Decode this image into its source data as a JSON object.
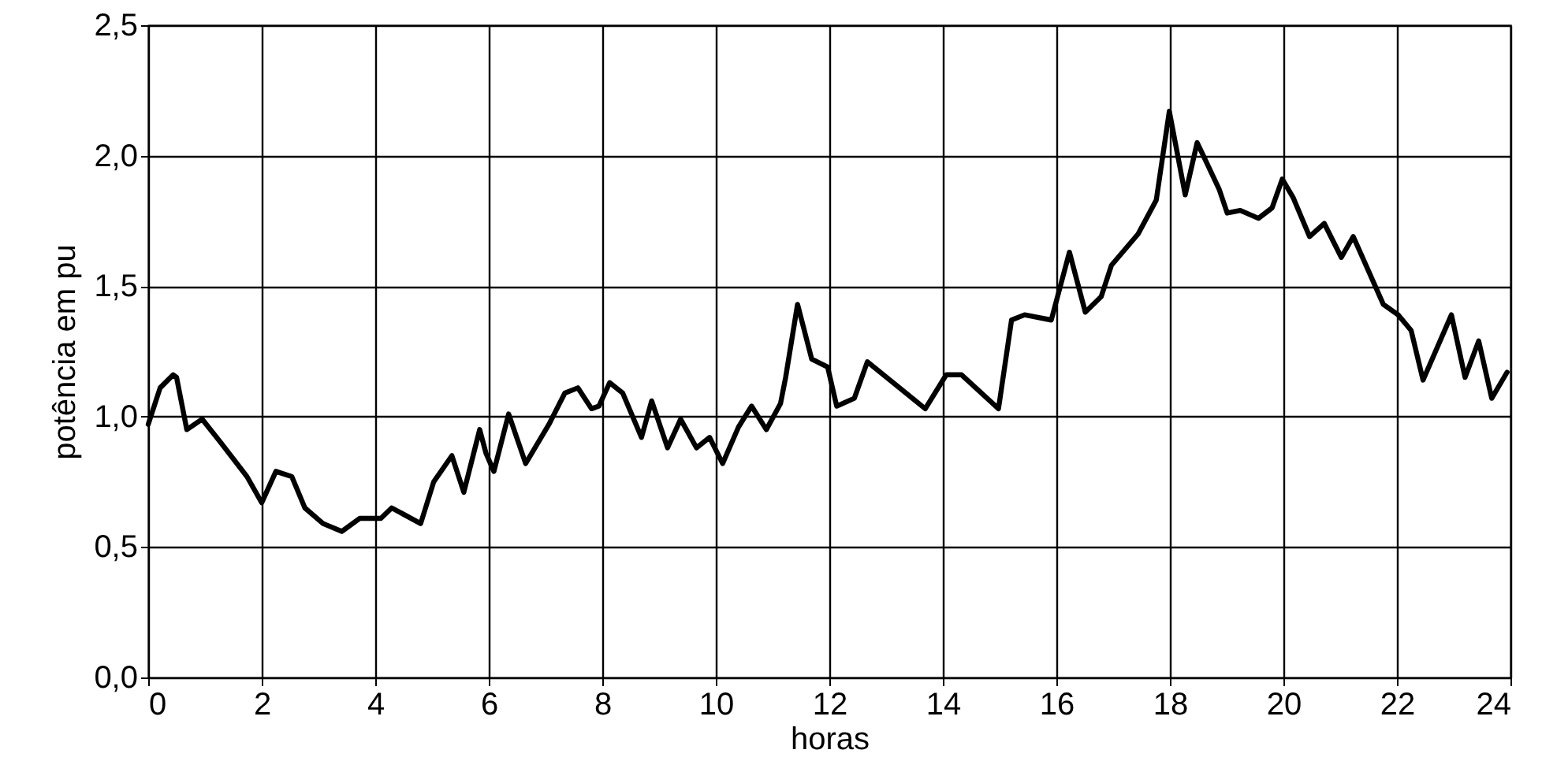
{
  "chart_data": {
    "type": "line",
    "xlabel": "horas",
    "ylabel": "potência em pu",
    "x": [
      0,
      0.21,
      0.44,
      0.5,
      0.68,
      0.95,
      1.28,
      1.74,
      2.0,
      2.25,
      2.53,
      2.76,
      3.08,
      3.41,
      3.73,
      4.1,
      4.29,
      4.8,
      5.03,
      5.35,
      5.56,
      5.84,
      5.95,
      6.09,
      6.35,
      6.65,
      7.06,
      7.34,
      7.57,
      7.81,
      7.94,
      8.13,
      8.36,
      8.69,
      8.87,
      9.15,
      9.38,
      9.66,
      9.89,
      10.12,
      10.4,
      10.63,
      10.89,
      11.14,
      11.23,
      11.44,
      11.69,
      11.97,
      12.13,
      12.44,
      12.67,
      13.69,
      14.06,
      14.33,
      14.98,
      15.21,
      15.44,
      15.91,
      16.23,
      16.51,
      16.79,
      16.97,
      17.44,
      17.76,
      17.99,
      18.27,
      18.48,
      18.87,
      19.01,
      19.24,
      19.56,
      19.8,
      19.98,
      20.17,
      20.46,
      20.72,
      21.02,
      21.23,
      21.76,
      22.02,
      22.25,
      22.46,
      22.96,
      23.2,
      23.44,
      23.67,
      23.94
    ],
    "series": [
      {
        "color": "#000000",
        "values": [
          0.97,
          1.11,
          1.16,
          1.15,
          0.95,
          0.99,
          0.9,
          0.77,
          0.67,
          0.79,
          0.77,
          0.65,
          0.59,
          0.56,
          0.61,
          0.61,
          0.65,
          0.59,
          0.75,
          0.85,
          0.71,
          0.95,
          0.86,
          0.79,
          1.01,
          0.82,
          0.97,
          1.09,
          1.11,
          1.03,
          1.04,
          1.13,
          1.09,
          0.92,
          1.06,
          0.88,
          0.99,
          0.88,
          0.92,
          0.82,
          0.96,
          1.04,
          0.95,
          1.05,
          1.15,
          1.43,
          1.22,
          1.19,
          1.04,
          1.07,
          1.21,
          1.03,
          1.16,
          1.16,
          1.03,
          1.37,
          1.39,
          1.37,
          1.63,
          1.4,
          1.46,
          1.58,
          1.7,
          1.83,
          2.17,
          1.85,
          2.05,
          1.87,
          1.78,
          1.79,
          1.76,
          1.8,
          1.91,
          1.84,
          1.69,
          1.74,
          1.61,
          1.69,
          1.43,
          1.39,
          1.33,
          1.14,
          1.39,
          1.15,
          1.29,
          1.07,
          1.17
        ]
      }
    ],
    "xlim": [
      0,
      24
    ],
    "xticks": [
      0,
      2,
      4,
      6,
      8,
      10,
      12,
      14,
      16,
      18,
      20,
      22,
      24
    ],
    "ylim": [
      0,
      2.5
    ],
    "yticks": [
      {
        "value": 0,
        "label": "0,0"
      },
      {
        "value": 0.5,
        "label": "0,5"
      },
      {
        "value": 1,
        "label": "1,0"
      },
      {
        "value": 1.5,
        "label": "1,5"
      },
      {
        "value": 2,
        "label": "2,0"
      },
      {
        "value": 2.5,
        "label": "2,5"
      }
    ],
    "grid": true,
    "marker": "none",
    "line_style": "solid"
  }
}
